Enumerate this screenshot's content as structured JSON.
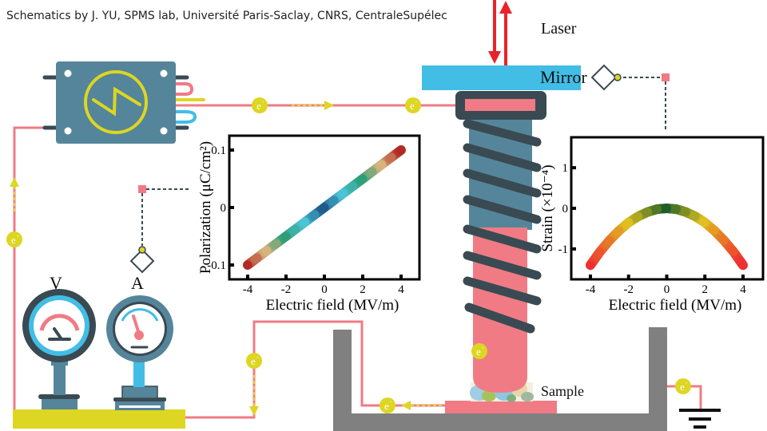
{
  "caption": "Schematics by J. YU, SPMS lab, Université Paris-Saclay, CNRS, CentraleSupélec",
  "labels": {
    "laser": "Laser",
    "mirror": "Mirror",
    "sample": "Sample",
    "voltmeter": "V",
    "ammeter": "A",
    "electron": "e",
    "electron_sup": "-"
  },
  "colors": {
    "wire": "#f07b84",
    "electron": "#ddd622",
    "device": "#55859a",
    "dark": "#3a4a52",
    "mirror": "#41bde6",
    "laser": "#e8232a",
    "base": "#ddd622",
    "tank": "#808080"
  },
  "chart_data": [
    {
      "type": "line",
      "xlabel": "Electric field (MV/m)",
      "ylabel": "Polarization (μC/cm²)",
      "xlim": [
        -4.6,
        4.6
      ],
      "ylim": [
        -0.125,
        0.125
      ],
      "xticks": [
        "-4",
        "-2",
        "0",
        "2",
        "4"
      ],
      "yticks": [
        "0.1",
        "0",
        "-0.1"
      ],
      "x": [
        -4,
        -3.5,
        -3,
        -2.5,
        -2,
        -1.5,
        -1,
        -0.5,
        0,
        0.5,
        1,
        1.5,
        2,
        2.5,
        3,
        3.5,
        4
      ],
      "y": [
        -0.1,
        -0.0875,
        -0.075,
        -0.0625,
        -0.05,
        -0.0375,
        -0.025,
        -0.0125,
        0,
        0.0125,
        0.025,
        0.0375,
        0.05,
        0.0625,
        0.075,
        0.0875,
        0.1
      ],
      "grid": false
    },
    {
      "type": "line",
      "xlabel": "Electric field (MV/m)",
      "ylabel": "Strain (×10⁻⁴)",
      "xlim": [
        -4.6,
        4.6
      ],
      "ylim": [
        -1.75,
        1.75
      ],
      "xticks": [
        "-4",
        "-2",
        "0",
        "2",
        "4"
      ],
      "yticks": [
        "1",
        "0",
        "-1"
      ],
      "x": [
        -4,
        -3.5,
        -3,
        -2.5,
        -2,
        -1.5,
        -1,
        -0.5,
        0,
        0.5,
        1,
        1.5,
        2,
        2.5,
        3,
        3.5,
        4
      ],
      "y": [
        -1.4,
        -1.07,
        -0.79,
        -0.55,
        -0.35,
        -0.2,
        -0.09,
        -0.02,
        0,
        -0.02,
        -0.09,
        -0.2,
        -0.35,
        -0.55,
        -0.79,
        -1.07,
        -1.4
      ],
      "grid": false
    }
  ]
}
